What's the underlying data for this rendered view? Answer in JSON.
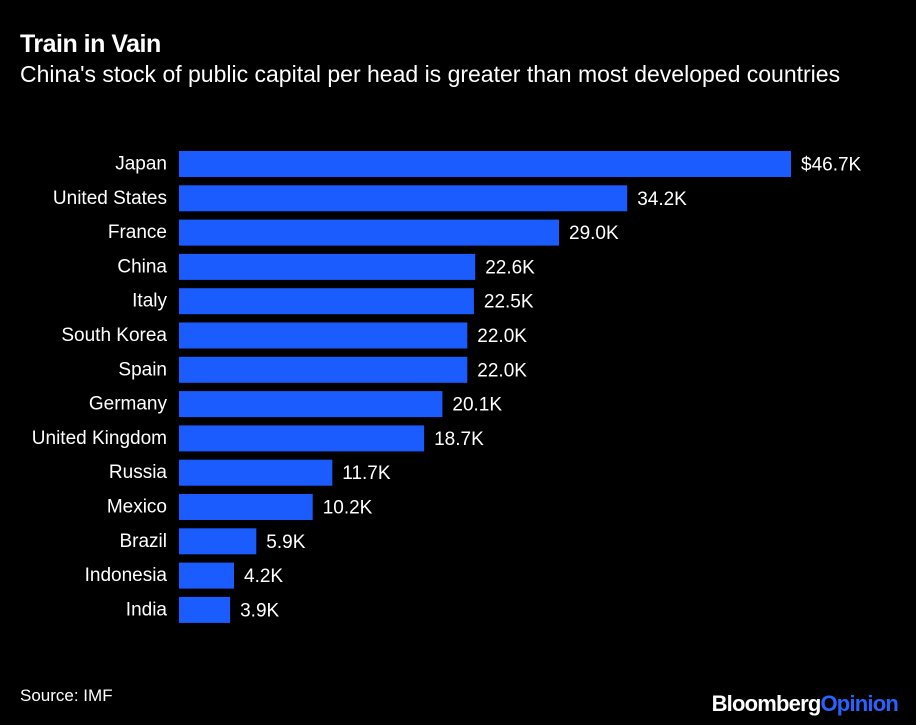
{
  "header": {
    "title": "Train in Vain",
    "subtitle": "China's stock of public capital per head is greater than most developed countries"
  },
  "footer": {
    "source": "Source: IMF",
    "brand_main": "Bloomberg",
    "brand_accent": "Opinion"
  },
  "colors": {
    "background": "#000000",
    "bar": "#1b5cff",
    "text": "#ffffff",
    "brand_accent": "#2962ff"
  },
  "chart_data": {
    "type": "bar",
    "orientation": "horizontal",
    "title": "Train in Vain",
    "subtitle": "China's stock of public capital per head is greater than most developed countries",
    "unit": "USD thousands per head",
    "categories": [
      "Japan",
      "United States",
      "France",
      "China",
      "Italy",
      "South Korea",
      "Spain",
      "Germany",
      "United Kingdom",
      "Russia",
      "Mexico",
      "Brazil",
      "Indonesia",
      "India"
    ],
    "values": [
      46.7,
      34.2,
      29.0,
      22.6,
      22.5,
      22.0,
      22.0,
      20.1,
      18.7,
      11.7,
      10.2,
      5.9,
      4.2,
      3.9
    ],
    "labels": [
      "$46.7K",
      "34.2K",
      "29.0K",
      "22.6K",
      "22.5K",
      "22.0K",
      "22.0K",
      "20.1K",
      "18.7K",
      "11.7K",
      "10.2K",
      "5.9K",
      "4.2K",
      "3.9K"
    ],
    "xlim": [
      0,
      46.7
    ],
    "xlabel": "",
    "ylabel": "",
    "grid": false,
    "legend": "none"
  }
}
